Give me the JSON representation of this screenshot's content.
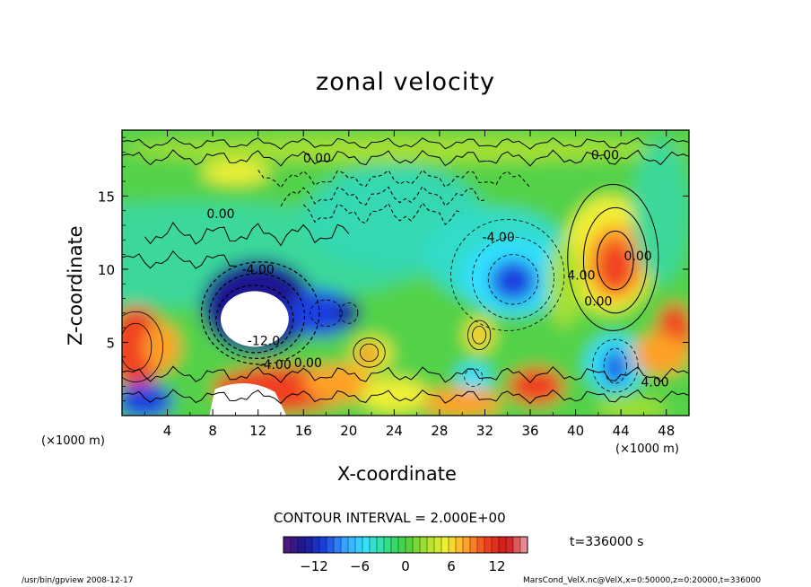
{
  "chart_data": {
    "type": "heatmap",
    "title": "zonal velocity",
    "xlabel": "X-coordinate",
    "ylabel": "Z-coordinate",
    "x_unit_left": "(×1000 m)",
    "x_unit_right": "(×1000 m)",
    "xlim": [
      0,
      50
    ],
    "ylim": [
      0,
      19.5
    ],
    "x_ticks": [
      "4",
      "8",
      "12",
      "16",
      "20",
      "24",
      "28",
      "32",
      "36",
      "40",
      "44",
      "48"
    ],
    "y_ticks": [
      "5",
      "10",
      "15"
    ],
    "contour_interval_label": "CONTOUR INTERVAL = 2.000E+00",
    "contour_labels": [
      {
        "text": "0.00",
        "x": 17.2,
        "y": 17.3
      },
      {
        "text": "0.00",
        "x": 42.6,
        "y": 17.5
      },
      {
        "text": "0.00",
        "x": 8.7,
        "y": 13.5
      },
      {
        "text": "-4.00",
        "x": 33.2,
        "y": 11.9
      },
      {
        "text": "-4.00",
        "x": 12.0,
        "y": 9.7
      },
      {
        "text": "-12.0",
        "x": 12.5,
        "y": 4.8
      },
      {
        "text": "-4.00",
        "x": 13.5,
        "y": 3.2
      },
      {
        "text": "0.00",
        "x": 16.4,
        "y": 3.3
      },
      {
        "text": "4.00",
        "x": 40.5,
        "y": 9.3
      },
      {
        "text": "0.00",
        "x": 42.0,
        "y": 7.5
      },
      {
        "text": "4.00",
        "x": 47.0,
        "y": 2.0
      },
      {
        "text": "0.00",
        "x": 45.5,
        "y": 10.6
      }
    ],
    "colorbar": {
      "ticks": [
        "−12",
        "−6",
        "0",
        "6",
        "12"
      ],
      "range": [
        -16,
        16
      ],
      "colors": [
        "#58187a",
        "#1c1890",
        "#1a40e0",
        "#38a0ff",
        "#33e0ff",
        "#30e090",
        "#44d040",
        "#a6e030",
        "#f0f034",
        "#ffa028",
        "#f04020",
        "#d01818",
        "#f0a0a8"
      ]
    },
    "time_label": "t=336000 s",
    "footer_left": "/usr/bin/gpview   2008-12-17",
    "footer_right": "MarsCond_VelX.nc@VelX,x=0:50000,z=0:20000,t=336000"
  }
}
